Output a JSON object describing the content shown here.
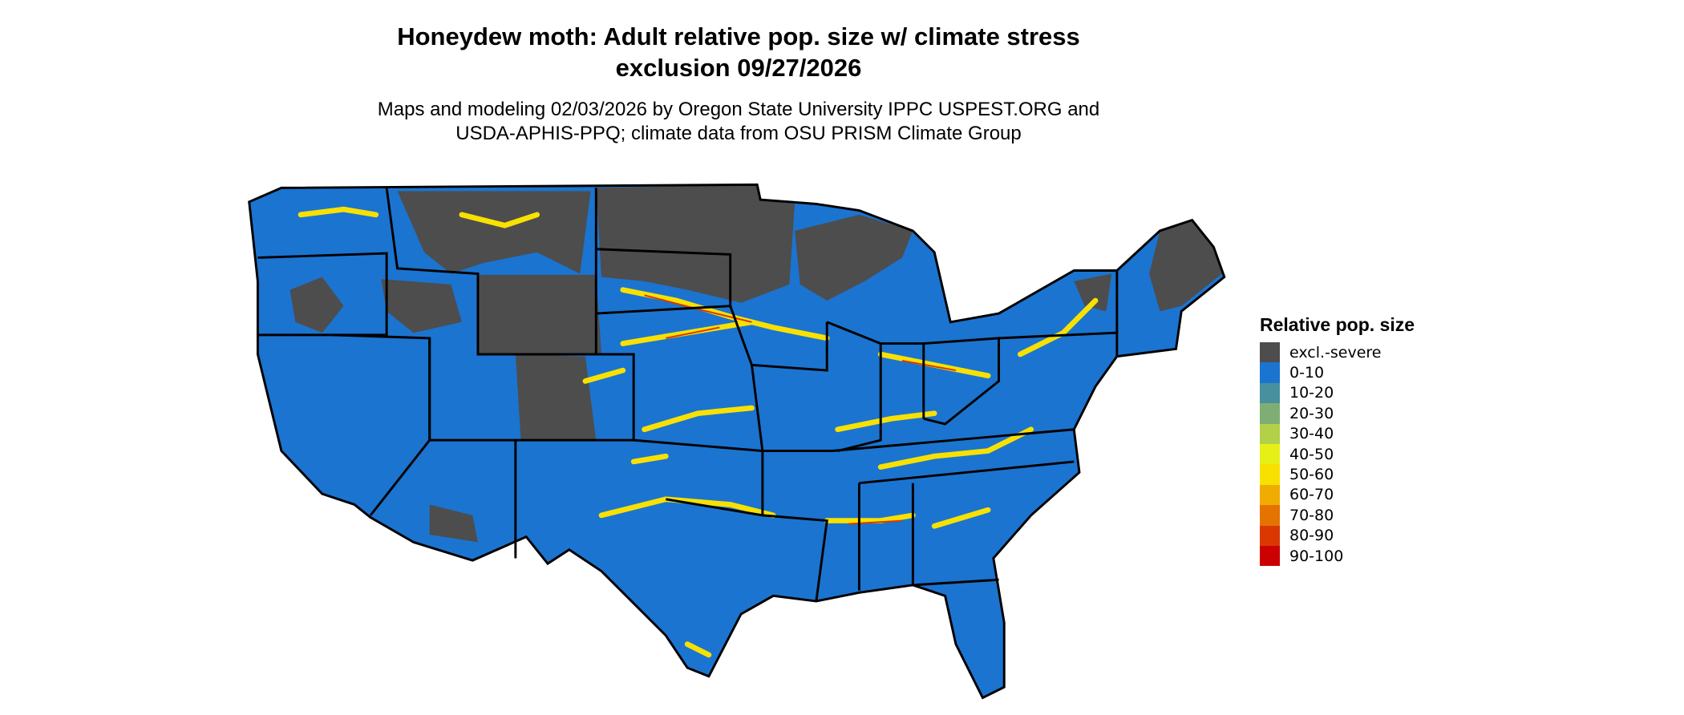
{
  "title": {
    "line1": "Honeydew moth: Adult relative pop. size w/ climate stress",
    "line2": "exclusion 09/27/2026"
  },
  "subtitle": {
    "line1": "Maps and modeling 02/03/2026 by Oregon State University IPPC USPEST.ORG and",
    "line2": "USDA-APHIS-PPQ; climate data from OSU PRISM Climate Group"
  },
  "legend": {
    "title": "Relative pop. size",
    "items": [
      {
        "label": "excl.-severe",
        "color": "#4d4d4d"
      },
      {
        "label": "0-10",
        "color": "#1b74d0"
      },
      {
        "label": "10-20",
        "color": "#48909e"
      },
      {
        "label": "20-30",
        "color": "#7fae74"
      },
      {
        "label": "30-40",
        "color": "#b2d048"
      },
      {
        "label": "40-50",
        "color": "#e6f016"
      },
      {
        "label": "50-60",
        "color": "#f8e100"
      },
      {
        "label": "60-70",
        "color": "#f0ac00"
      },
      {
        "label": "70-80",
        "color": "#e57300"
      },
      {
        "label": "80-90",
        "color": "#da3800"
      },
      {
        "label": "90-100",
        "color": "#cc0000"
      }
    ]
  },
  "map": {
    "region": "Contiguous United States",
    "land_color": "#1b74d0",
    "excluded_color": "#4d4d4d",
    "border_color": "#000000"
  }
}
